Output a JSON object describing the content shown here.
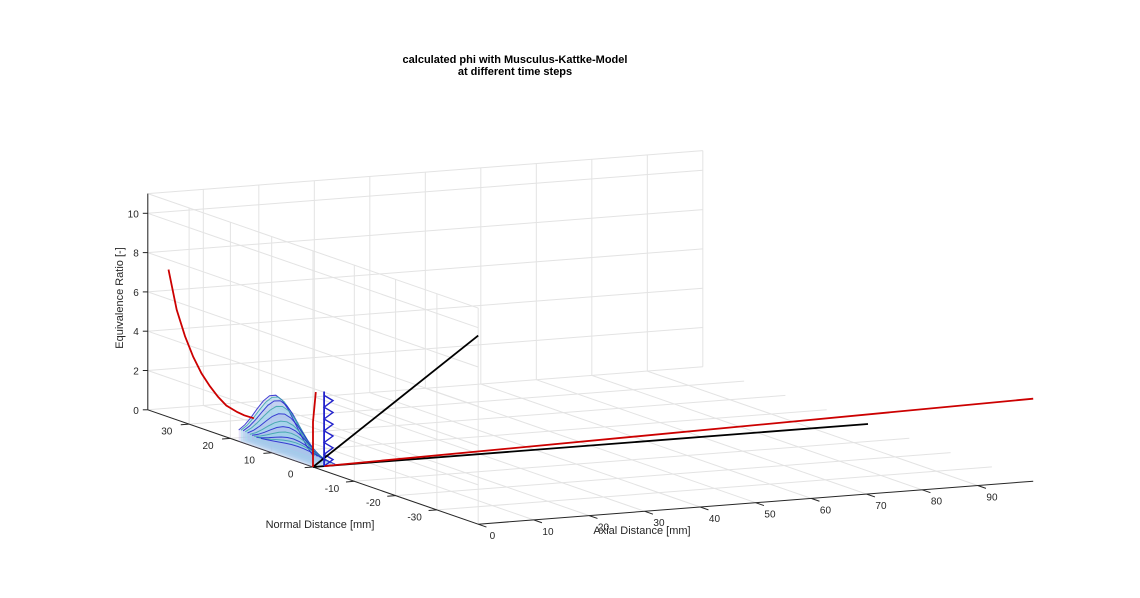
{
  "chart_data": {
    "type": "line3d",
    "title": [
      "calculated phi with Musculus-Kattke-Model",
      "at different time steps"
    ],
    "xlabel": "Axial Distance [mm]",
    "ylabel": "Normal Distance [mm]",
    "zlabel": "Equivalence Ratio [-]",
    "xlim": [
      0,
      100
    ],
    "ylim": [
      -40,
      40
    ],
    "zlim": [
      0,
      11
    ],
    "xticks": [
      0,
      10,
      20,
      30,
      40,
      50,
      60,
      70,
      80,
      90
    ],
    "yticks": [
      -30,
      -20,
      -10,
      0,
      10,
      20,
      30
    ],
    "zticks": [
      0,
      2,
      4,
      6,
      8,
      10
    ],
    "grid": true,
    "colors": {
      "red": "#cc0000",
      "black": "#000000",
      "blue": "#2222cc",
      "teal": "#3aa3a8",
      "cyan": "#8fe3e8",
      "lavender": "#b9b3ee"
    },
    "series": [
      {
        "color": "black",
        "points": [
          [
            0,
            0,
            0
          ],
          [
            0,
            -40,
            9.6
          ]
        ]
      },
      {
        "color": "black",
        "points": [
          [
            0,
            0,
            0
          ],
          [
            100,
            0,
            0
          ]
        ]
      },
      {
        "color": "red",
        "points": [
          [
            2,
            0,
            0
          ],
          [
            100,
            -40,
            4.2
          ]
        ]
      },
      {
        "color": "red",
        "points": [
          [
            0,
            0,
            0
          ],
          [
            0,
            0,
            2.3
          ],
          [
            0.5,
            0,
            3.8
          ]
        ]
      },
      {
        "color": "blue",
        "points": [
          [
            2,
            0,
            0
          ],
          [
            2,
            0,
            3.8
          ]
        ]
      }
    ],
    "centerline": {
      "color": "red",
      "x": [
        0,
        0,
        0,
        0,
        0,
        0,
        0,
        0,
        0.5,
        1,
        2
      ],
      "y": [
        35,
        33,
        31,
        29,
        27,
        25,
        23,
        21,
        19,
        18,
        17
      ],
      "z": [
        7.5,
        5.6,
        4.4,
        3.5,
        2.8,
        2.3,
        1.9,
        1.6,
        1.4,
        1.3,
        1.2
      ]
    },
    "profile_bundle": {
      "x": [
        0,
        0.4,
        0.8,
        1.2,
        1.6,
        2,
        2.4,
        2.8,
        3.2,
        3.6,
        4
      ],
      "phi_max": [
        3.0,
        2.9,
        2.7,
        2.4,
        2.0,
        1.6,
        1.3,
        1.0,
        0.7,
        0.5,
        0.3
      ]
    }
  }
}
